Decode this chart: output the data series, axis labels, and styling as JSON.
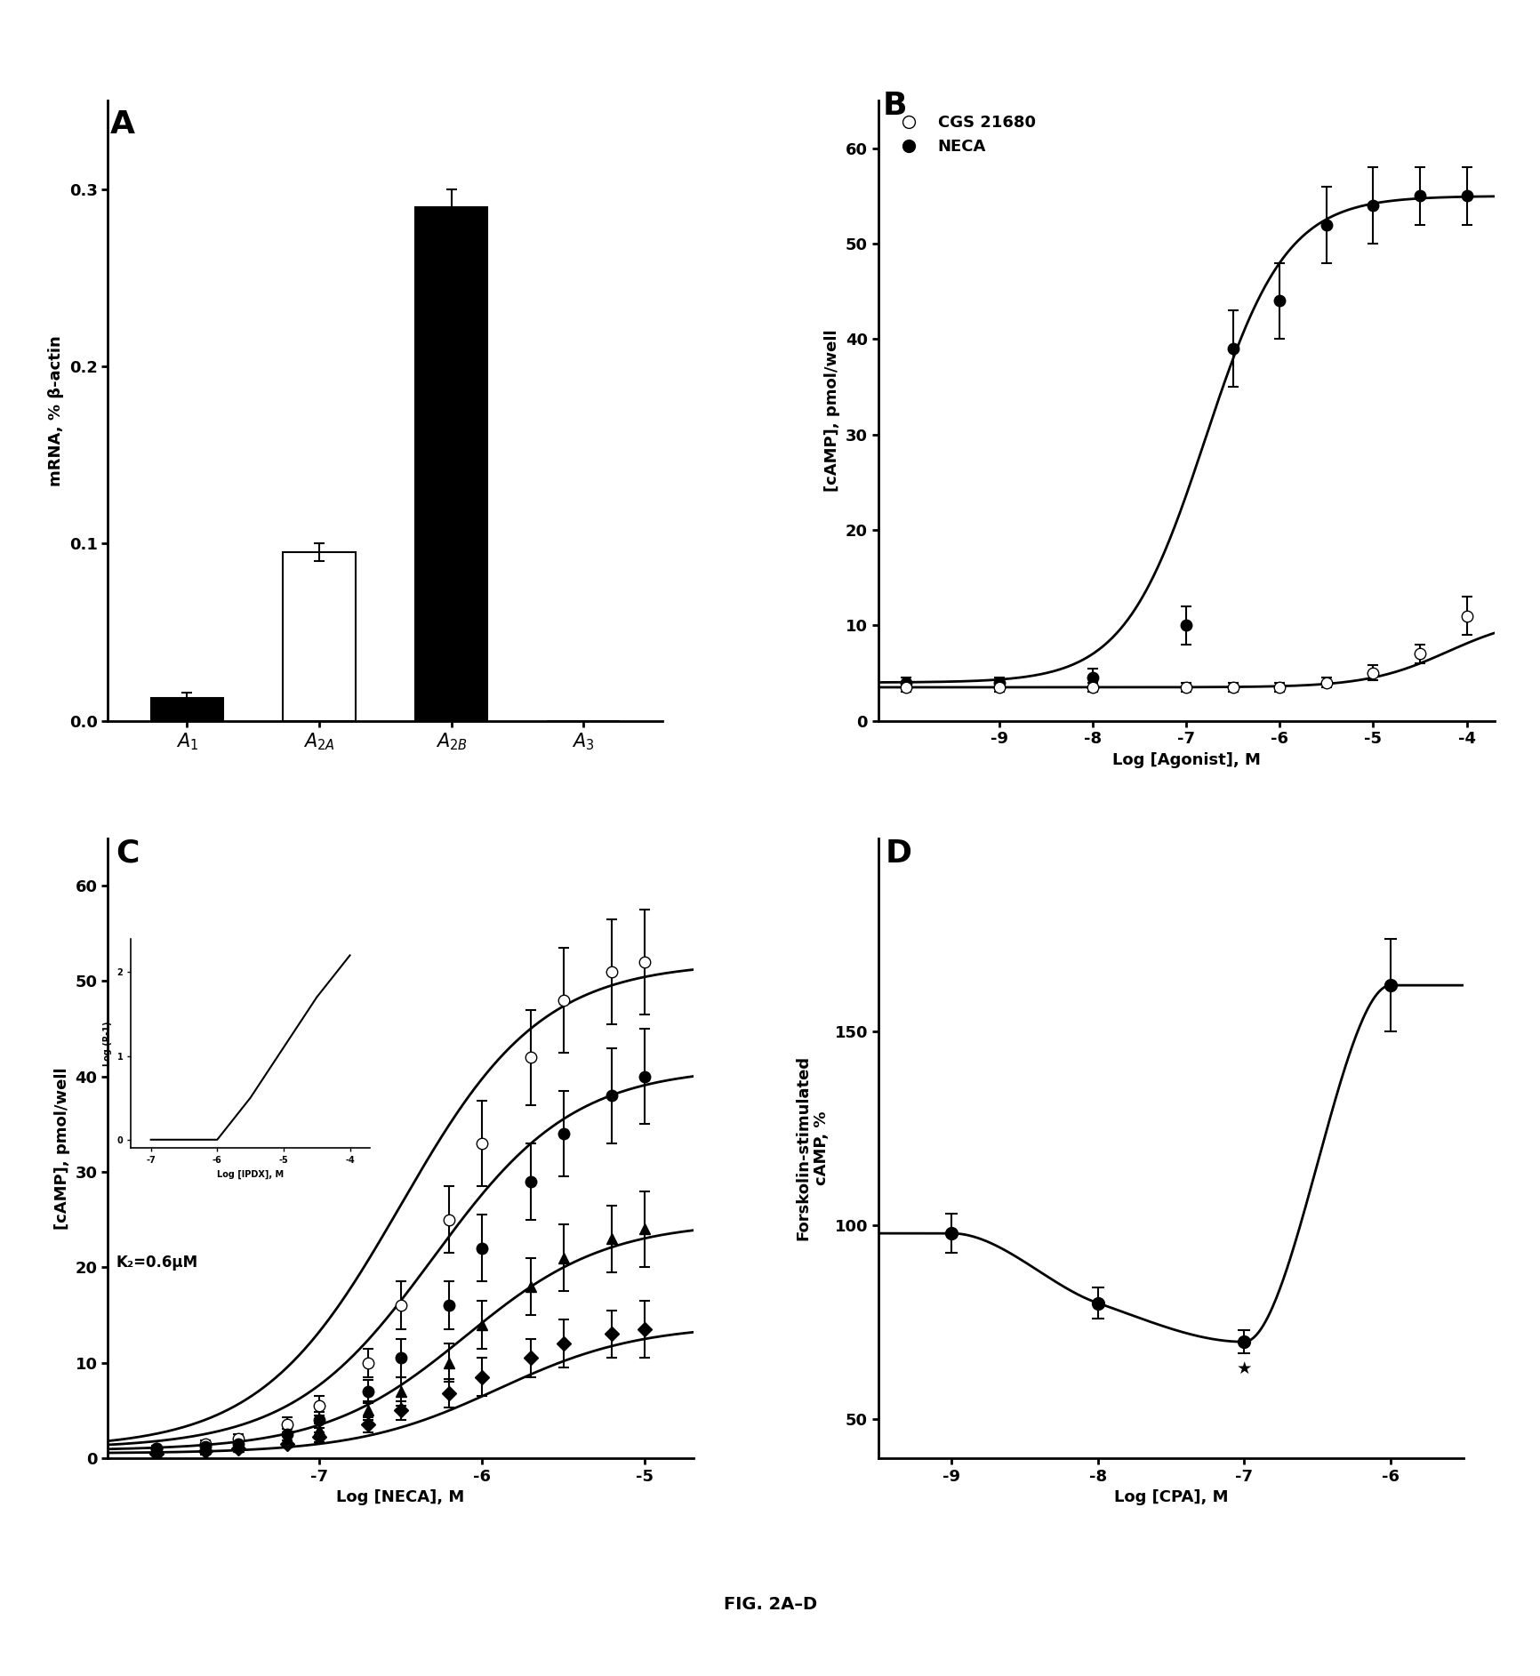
{
  "panel_A": {
    "categories": [
      "A1",
      "A2A",
      "A2B",
      "A3"
    ],
    "values": [
      0.013,
      0.095,
      0.29,
      0.0
    ],
    "errors": [
      0.003,
      0.005,
      0.01,
      0.0
    ],
    "colors": [
      "black",
      "white",
      "black",
      "white"
    ],
    "ylabel": "mRNA, % β-actin",
    "ylim": [
      0,
      0.35
    ],
    "yticks": [
      0.0,
      0.1,
      0.2,
      0.3
    ]
  },
  "panel_B": {
    "neca_x": [
      -10,
      -9,
      -8,
      -7,
      -6.5,
      -6,
      -5.5,
      -5,
      -4.5,
      -4
    ],
    "neca_y": [
      4.0,
      4.0,
      4.5,
      10.0,
      39.0,
      44.0,
      52.0,
      54.0,
      55.0,
      55.0
    ],
    "neca_err": [
      0.5,
      0.5,
      1.0,
      2.0,
      4.0,
      4.0,
      4.0,
      4.0,
      3.0,
      3.0
    ],
    "cgs_x": [
      -10,
      -9,
      -8,
      -7,
      -6.5,
      -6,
      -5.5,
      -5,
      -4.5,
      -4
    ],
    "cgs_y": [
      3.5,
      3.5,
      3.5,
      3.5,
      3.5,
      3.5,
      4.0,
      5.0,
      7.0,
      11.0
    ],
    "cgs_err": [
      0.5,
      0.5,
      0.5,
      0.5,
      0.5,
      0.5,
      0.5,
      0.8,
      1.0,
      2.0
    ],
    "ylabel": "[cAMP], pmol/well",
    "xlabel": "Log [Agonist], M",
    "ylim": [
      0,
      65
    ],
    "yticks": [
      0,
      10,
      20,
      30,
      40,
      50,
      60
    ],
    "xticks": [
      -9,
      -8,
      -7,
      -6,
      -5,
      -4
    ],
    "xlim": [
      -10.3,
      -3.7
    ],
    "neca_ec50": -6.8,
    "cgs_ec50": -4.2
  },
  "panel_C": {
    "neca_x": [
      -8.0,
      -7.7,
      -7.5,
      -7.2,
      -7.0,
      -6.7,
      -6.5,
      -6.2,
      -6.0,
      -5.7,
      -5.5,
      -5.2,
      -5.0
    ],
    "neca_y": [
      1.0,
      1.5,
      2.0,
      3.5,
      5.5,
      10.0,
      16.0,
      25.0,
      33.0,
      42.0,
      48.0,
      51.0,
      52.0
    ],
    "neca_err": [
      0.3,
      0.4,
      0.5,
      0.8,
      1.0,
      1.5,
      2.5,
      3.5,
      4.5,
      5.0,
      5.5,
      5.5,
      5.5
    ],
    "ipdx1_x": [
      -8.0,
      -7.7,
      -7.5,
      -7.2,
      -7.0,
      -6.7,
      -6.5,
      -6.2,
      -6.0,
      -5.7,
      -5.5,
      -5.2,
      -5.0
    ],
    "ipdx1_y": [
      1.0,
      1.2,
      1.5,
      2.5,
      4.0,
      7.0,
      10.5,
      16.0,
      22.0,
      29.0,
      34.0,
      38.0,
      40.0
    ],
    "ipdx1_err": [
      0.3,
      0.3,
      0.4,
      0.6,
      0.8,
      1.2,
      2.0,
      2.5,
      3.5,
      4.0,
      4.5,
      5.0,
      5.0
    ],
    "ipdx2_x": [
      -8.0,
      -7.7,
      -7.5,
      -7.2,
      -7.0,
      -6.7,
      -6.5,
      -6.2,
      -6.0,
      -5.7,
      -5.5,
      -5.2,
      -5.0
    ],
    "ipdx2_y": [
      0.8,
      1.0,
      1.2,
      2.0,
      3.0,
      5.0,
      7.0,
      10.0,
      14.0,
      18.0,
      21.0,
      23.0,
      24.0
    ],
    "ipdx2_err": [
      0.3,
      0.3,
      0.3,
      0.5,
      0.6,
      1.0,
      1.5,
      2.0,
      2.5,
      3.0,
      3.5,
      3.5,
      4.0
    ],
    "ipdx3_x": [
      -8.0,
      -7.7,
      -7.5,
      -7.2,
      -7.0,
      -6.7,
      -6.5,
      -6.2,
      -6.0,
      -5.7,
      -5.5,
      -5.2,
      -5.0
    ],
    "ipdx3_y": [
      0.5,
      0.7,
      1.0,
      1.5,
      2.2,
      3.5,
      5.0,
      6.8,
      8.5,
      10.5,
      12.0,
      13.0,
      13.5
    ],
    "ipdx3_err": [
      0.2,
      0.3,
      0.3,
      0.4,
      0.5,
      0.8,
      1.0,
      1.5,
      2.0,
      2.0,
      2.5,
      2.5,
      3.0
    ],
    "ylabel": "[cAMP], pmol/well",
    "xlabel": "Log [NECA], M",
    "ylim": [
      0,
      65
    ],
    "yticks": [
      0,
      10,
      20,
      30,
      40,
      50,
      60
    ],
    "xticks": [
      -7,
      -6,
      -5
    ],
    "xlim": [
      -8.3,
      -4.7
    ],
    "kb_text": "K₂=0.6μM",
    "neca_ec50": -6.5,
    "ipdx1_ec50": -6.3,
    "ipdx2_ec50": -6.1,
    "ipdx3_ec50": -5.9
  },
  "panel_D": {
    "x": [
      -9,
      -8,
      -7,
      -6
    ],
    "y": [
      98,
      80,
      70,
      162
    ],
    "err": [
      5,
      4,
      3,
      12
    ],
    "ylabel": "Forskolin-stimulated\ncAMP, %",
    "xlabel": "Log [CPA], M",
    "ylim": [
      40,
      200
    ],
    "yticks": [
      50,
      100,
      150
    ],
    "xticks": [
      -9,
      -8,
      -7,
      -6
    ],
    "xlim": [
      -9.5,
      -5.5
    ],
    "star_x": -7,
    "star_y": 63
  },
  "fig_label": "FIG. 2A–D"
}
